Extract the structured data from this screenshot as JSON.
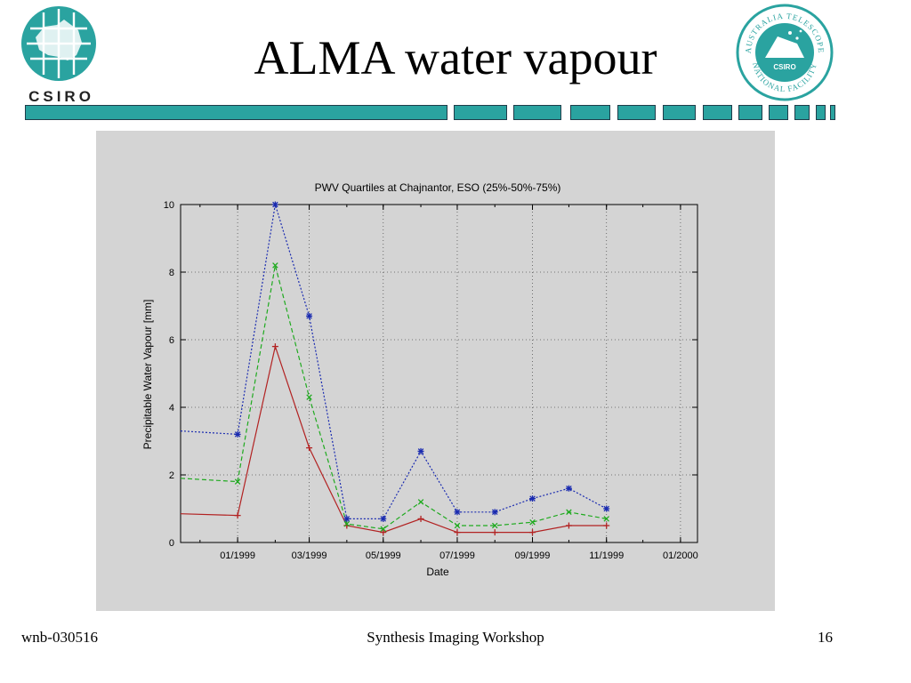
{
  "slide": {
    "title": "ALMA water vapour",
    "footer_left": "wnb-030516",
    "footer_center": "Synthesis Imaging Workshop",
    "footer_right": "16"
  },
  "logos": {
    "left": {
      "icon": "csiro-logo-icon",
      "text": "CSIRO",
      "color": "#2aa3a0"
    },
    "right": {
      "icon": "atnf-seal-icon",
      "top_text": "AUSTRALIA TELESCOPE",
      "bottom_text": "NATIONAL FACILITY",
      "center_text": "CSIRO",
      "color": "#2aa3a0"
    }
  },
  "colors": {
    "accent": "#2aa3a0",
    "band_border": "#1f3d4a"
  },
  "chart_data": {
    "type": "line",
    "title": "PWV Quartiles at Chajnantor, ESO (25%-50%-75%)",
    "xlabel": "Date",
    "ylabel": "Precipitable Water Vapour [mm]",
    "x_ticks": [
      "01/1999",
      "03/1999",
      "05/1999",
      "07/1999",
      "09/1999",
      "11/1999",
      "01/2000"
    ],
    "y_ticks": [
      "0",
      "2",
      "4",
      "6",
      "8",
      "10"
    ],
    "ylim": [
      0,
      10
    ],
    "xlim": [
      "1998-11-15",
      "2000-01-15"
    ],
    "grid": true,
    "legend": "none",
    "x": [
      "1998-11-15",
      "1999-01-01",
      "1999-02-01",
      "1999-03-01",
      "1999-04-01",
      "1999-05-01",
      "1999-06-01",
      "1999-07-01",
      "1999-08-01",
      "1999-09-01",
      "1999-10-01",
      "1999-11-01"
    ],
    "series": [
      {
        "quartile": "25%",
        "color": "#b22222",
        "dash": "solid",
        "marker": "plus",
        "values": [
          0.85,
          0.8,
          5.8,
          2.8,
          0.5,
          0.3,
          0.7,
          0.3,
          0.3,
          0.3,
          0.5,
          0.5
        ]
      },
      {
        "quartile": "50%",
        "color": "#1faa1f",
        "dash": "dashed",
        "marker": "cross",
        "values": [
          1.9,
          1.8,
          8.2,
          4.3,
          0.55,
          0.4,
          1.2,
          0.5,
          0.5,
          0.6,
          0.9,
          0.7
        ]
      },
      {
        "quartile": "75%",
        "color": "#1a2bb0",
        "dash": "dotted",
        "marker": "star",
        "values": [
          3.3,
          3.2,
          10.0,
          6.7,
          0.7,
          0.7,
          2.7,
          0.9,
          0.9,
          1.3,
          1.6,
          1.0
        ]
      }
    ]
  }
}
